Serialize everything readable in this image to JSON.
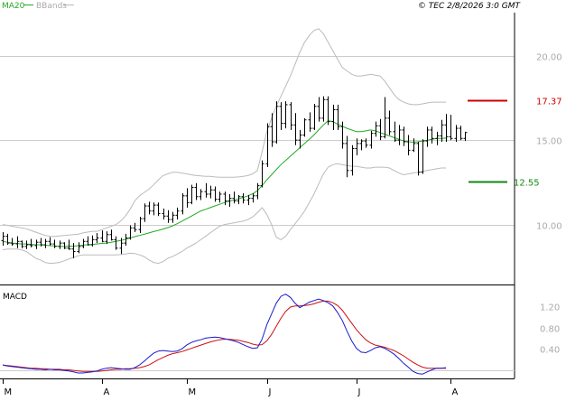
{
  "header": {
    "legend_ma": "MA20",
    "legend_bb": "BBands",
    "copyright": "© TEC 2/8/2026 3:0 GMT"
  },
  "colors": {
    "price": "#000000",
    "ma": "#22aa22",
    "bands": "#bbbbbb",
    "grid": "#cccccc",
    "resistance": "#cc0000",
    "support": "#118811",
    "macd": "#1a1acc",
    "signal": "#cc1111",
    "label": "#aaaaaa"
  },
  "chart_data": [
    {
      "type": "candlestick",
      "title": "",
      "ylim": [
        6.5,
        22.5
      ],
      "yticks": [
        {
          "value": 10,
          "label": "10.00"
        },
        {
          "value": 15,
          "label": "15.00"
        },
        {
          "value": 20,
          "label": "20.00"
        }
      ],
      "xticks": [
        {
          "i": 0,
          "label": "M"
        },
        {
          "i": 21,
          "label": "A"
        },
        {
          "i": 39,
          "label": "M"
        },
        {
          "i": 56,
          "label": "J"
        },
        {
          "i": 75,
          "label": "J"
        },
        {
          "i": 95,
          "label": "A"
        }
      ],
      "levels": [
        {
          "name": "resistance",
          "value": 17.37,
          "label": "17.37"
        },
        {
          "name": "support",
          "value": 12.55,
          "label": "12.55"
        }
      ],
      "series": [
        {
          "name": "MA20",
          "values": [
            9.0,
            8.95,
            8.9,
            8.88,
            8.85,
            8.85,
            8.82,
            8.8,
            8.8,
            8.78,
            8.75,
            8.73,
            8.7,
            8.7,
            8.72,
            8.72,
            8.75,
            8.78,
            8.8,
            8.82,
            8.85,
            8.88,
            8.9,
            8.95,
            9.0,
            9.05,
            9.12,
            9.2,
            9.28,
            9.35,
            9.42,
            9.5,
            9.58,
            9.65,
            9.73,
            9.82,
            9.92,
            10.05,
            10.2,
            10.35,
            10.5,
            10.65,
            10.8,
            10.9,
            11.0,
            11.1,
            11.2,
            11.3,
            11.38,
            11.45,
            11.52,
            11.6,
            11.7,
            11.82,
            12.0,
            12.3,
            12.65,
            12.95,
            13.25,
            13.55,
            13.8,
            14.05,
            14.3,
            14.55,
            14.8,
            15.05,
            15.3,
            15.6,
            15.9,
            16.15,
            16.1,
            15.95,
            15.82,
            15.7,
            15.6,
            15.5,
            15.5,
            15.55,
            15.6,
            15.55,
            15.45,
            15.35,
            15.25,
            15.15,
            15.05,
            14.95,
            14.9,
            14.88,
            14.9,
            14.95,
            15.0,
            15.05,
            15.1,
            15.1,
            15.12
          ]
        },
        {
          "name": "BBands upper",
          "values": [
            10.0,
            9.95,
            9.9,
            9.85,
            9.8,
            9.75,
            9.65,
            9.55,
            9.45,
            9.35,
            9.3,
            9.3,
            9.32,
            9.35,
            9.38,
            9.4,
            9.42,
            9.5,
            9.55,
            9.6,
            9.6,
            9.7,
            9.8,
            9.9,
            10.0,
            10.2,
            10.5,
            10.9,
            11.4,
            11.7,
            11.9,
            12.1,
            12.35,
            12.65,
            12.9,
            13.0,
            13.1,
            13.1,
            13.05,
            13.0,
            12.95,
            12.9,
            12.88,
            12.85,
            12.85,
            12.82,
            12.8,
            12.8,
            12.8,
            12.8,
            12.82,
            12.85,
            12.9,
            13.0,
            13.2,
            14.3,
            15.5,
            16.3,
            17.0,
            17.6,
            18.2,
            18.8,
            19.5,
            20.2,
            20.8,
            21.2,
            21.5,
            21.6,
            21.3,
            20.8,
            20.3,
            19.8,
            19.3,
            19.1,
            18.9,
            18.8,
            18.8,
            18.85,
            18.9,
            18.85,
            18.8,
            18.5,
            18.1,
            17.7,
            17.4,
            17.25,
            17.15,
            17.1,
            17.1,
            17.15,
            17.2,
            17.25,
            17.25,
            17.25,
            17.25
          ]
        },
        {
          "name": "BBands lower",
          "values": [
            8.5,
            8.55,
            8.55,
            8.55,
            8.5,
            8.4,
            8.2,
            8.0,
            7.9,
            7.75,
            7.7,
            7.72,
            7.75,
            7.85,
            7.95,
            8.05,
            8.15,
            8.2,
            8.2,
            8.2,
            8.2,
            8.2,
            8.2,
            8.2,
            8.2,
            8.22,
            8.25,
            8.3,
            8.28,
            8.2,
            8.1,
            7.9,
            7.75,
            7.7,
            7.8,
            8.0,
            8.1,
            8.25,
            8.4,
            8.6,
            8.75,
            8.9,
            9.1,
            9.3,
            9.5,
            9.7,
            9.9,
            10.0,
            10.05,
            10.1,
            10.15,
            10.2,
            10.3,
            10.45,
            10.7,
            11.0,
            10.6,
            10.0,
            9.25,
            9.1,
            9.3,
            9.7,
            10.05,
            10.4,
            10.8,
            11.3,
            11.8,
            12.4,
            13.0,
            13.4,
            13.55,
            13.6,
            13.55,
            13.5,
            13.45,
            13.45,
            13.4,
            13.35,
            13.35,
            13.4,
            13.4,
            13.4,
            13.35,
            13.2,
            13.05,
            12.95,
            13.0,
            13.05,
            13.1,
            13.15,
            13.2,
            13.25,
            13.3,
            13.35,
            13.35
          ]
        }
      ],
      "bars": [
        [
          9.05,
          9.55,
          8.75,
          9.3
        ],
        [
          9.3,
          9.45,
          8.8,
          8.9
        ],
        [
          8.9,
          9.2,
          8.75,
          8.85
        ],
        [
          8.85,
          9.3,
          8.6,
          9.0
        ],
        [
          9.0,
          9.05,
          8.6,
          8.7
        ],
        [
          8.7,
          9.05,
          8.55,
          8.8
        ],
        [
          8.8,
          9.15,
          8.65,
          8.75
        ],
        [
          8.75,
          9.1,
          8.55,
          8.95
        ],
        [
          8.95,
          9.2,
          8.7,
          8.8
        ],
        [
          8.8,
          9.15,
          8.6,
          9.0
        ],
        [
          9.0,
          9.25,
          8.75,
          8.85
        ],
        [
          8.85,
          9.1,
          8.6,
          8.7
        ],
        [
          8.7,
          9.05,
          8.55,
          8.9
        ],
        [
          8.9,
          8.95,
          8.55,
          8.6
        ],
        [
          8.6,
          9.1,
          8.5,
          8.55
        ],
        [
          8.55,
          8.9,
          8.0,
          8.4
        ],
        [
          8.4,
          8.95,
          8.3,
          8.7
        ],
        [
          8.7,
          9.15,
          8.6,
          9.0
        ],
        [
          9.0,
          9.3,
          8.75,
          8.8
        ],
        [
          8.8,
          9.35,
          8.7,
          9.1
        ],
        [
          9.1,
          9.5,
          8.9,
          9.2
        ],
        [
          9.2,
          9.65,
          8.95,
          9.0
        ],
        [
          9.0,
          9.6,
          8.85,
          9.4
        ],
        [
          9.4,
          9.7,
          9.05,
          9.1
        ],
        [
          9.1,
          9.3,
          8.5,
          8.6
        ],
        [
          8.6,
          9.2,
          8.25,
          8.9
        ],
        [
          8.9,
          9.45,
          8.75,
          9.2
        ],
        [
          9.2,
          9.95,
          9.1,
          9.8
        ],
        [
          9.8,
          10.1,
          9.55,
          9.7
        ],
        [
          9.7,
          10.45,
          9.5,
          10.35
        ],
        [
          10.35,
          11.25,
          10.15,
          11.1
        ],
        [
          11.1,
          11.35,
          10.6,
          10.8
        ],
        [
          10.8,
          11.3,
          10.55,
          11.15
        ],
        [
          11.15,
          11.3,
          10.5,
          10.65
        ],
        [
          10.65,
          10.95,
          10.3,
          10.5
        ],
        [
          10.5,
          10.85,
          10.1,
          10.3
        ],
        [
          10.3,
          10.75,
          10.1,
          10.55
        ],
        [
          10.55,
          11.0,
          10.3,
          10.8
        ],
        [
          10.8,
          11.85,
          10.6,
          11.7
        ],
        [
          11.7,
          12.15,
          11.0,
          11.3
        ],
        [
          11.3,
          12.35,
          11.2,
          12.2
        ],
        [
          12.2,
          12.45,
          11.45,
          11.65
        ],
        [
          11.65,
          12.1,
          11.45,
          11.95
        ],
        [
          11.95,
          12.45,
          11.6,
          11.8
        ],
        [
          11.8,
          12.3,
          11.55,
          12.05
        ],
        [
          12.05,
          12.25,
          11.35,
          11.5
        ],
        [
          11.5,
          11.95,
          11.3,
          11.8
        ],
        [
          11.8,
          11.95,
          11.15,
          11.4
        ],
        [
          11.4,
          11.8,
          11.05,
          11.55
        ],
        [
          11.55,
          11.95,
          11.25,
          11.4
        ],
        [
          11.4,
          11.75,
          11.2,
          11.65
        ],
        [
          11.65,
          11.85,
          11.25,
          11.45
        ],
        [
          11.45,
          11.75,
          11.15,
          11.55
        ],
        [
          11.55,
          11.85,
          11.3,
          11.7
        ],
        [
          11.7,
          12.45,
          11.5,
          12.3
        ],
        [
          12.3,
          13.8,
          12.2,
          13.6
        ],
        [
          13.6,
          16.0,
          13.4,
          15.8
        ],
        [
          15.8,
          16.6,
          14.6,
          14.9
        ],
        [
          14.9,
          17.3,
          14.8,
          17.0
        ],
        [
          17.0,
          17.25,
          15.6,
          16.0
        ],
        [
          16.0,
          17.3,
          15.7,
          17.1
        ],
        [
          17.1,
          17.25,
          15.6,
          15.9
        ],
        [
          15.9,
          16.6,
          14.7,
          15.0
        ],
        [
          15.0,
          15.6,
          14.5,
          15.3
        ],
        [
          15.3,
          16.3,
          15.2,
          16.2
        ],
        [
          16.2,
          16.65,
          15.5,
          15.7
        ],
        [
          15.7,
          17.15,
          15.6,
          17.0
        ],
        [
          17.0,
          17.55,
          16.1,
          16.3
        ],
        [
          16.3,
          17.6,
          16.1,
          17.4
        ],
        [
          17.4,
          17.6,
          15.9,
          16.1
        ],
        [
          16.1,
          17.1,
          15.6,
          16.8
        ],
        [
          16.8,
          17.1,
          15.6,
          15.8
        ],
        [
          15.8,
          16.1,
          14.5,
          14.8
        ],
        [
          14.8,
          15.25,
          12.8,
          13.2
        ],
        [
          13.2,
          14.7,
          12.9,
          14.5
        ],
        [
          14.5,
          15.1,
          14.1,
          14.8
        ],
        [
          14.8,
          15.05,
          14.4,
          14.95
        ],
        [
          14.95,
          15.1,
          14.55,
          14.7
        ],
        [
          14.7,
          15.55,
          14.5,
          15.4
        ],
        [
          15.4,
          16.1,
          15.2,
          15.85
        ],
        [
          15.85,
          16.25,
          15.0,
          15.2
        ],
        [
          15.2,
          17.55,
          15.1,
          16.3
        ],
        [
          16.3,
          16.75,
          15.3,
          15.5
        ],
        [
          15.5,
          16.1,
          14.9,
          15.0
        ],
        [
          15.0,
          15.9,
          14.7,
          15.6
        ],
        [
          15.6,
          15.8,
          14.65,
          14.9
        ],
        [
          14.9,
          15.3,
          14.1,
          14.4
        ],
        [
          14.4,
          15.1,
          14.3,
          14.8
        ],
        [
          14.8,
          14.9,
          12.9,
          13.1
        ],
        [
          13.1,
          15.05,
          13.0,
          14.95
        ],
        [
          14.95,
          15.8,
          14.6,
          15.6
        ],
        [
          15.6,
          15.8,
          14.8,
          15.1
        ],
        [
          15.1,
          15.5,
          14.7,
          15.25
        ],
        [
          15.25,
          16.2,
          14.9,
          15.9
        ],
        [
          15.9,
          16.55,
          14.9,
          15.2
        ],
        [
          15.2,
          16.5,
          15.0,
          15.1
        ],
        [
          15.1,
          15.9,
          14.9,
          15.7
        ],
        [
          15.7,
          15.85,
          15.0,
          15.1
        ],
        [
          15.1,
          15.5,
          14.95,
          15.45
        ]
      ]
    },
    {
      "type": "line",
      "title": "MACD",
      "ylim": [
        -0.1,
        1.55
      ],
      "yticks": [
        {
          "value": 0.4,
          "label": "0.40"
        },
        {
          "value": 0.8,
          "label": "0.80"
        },
        {
          "value": 1.2,
          "label": "1.20"
        }
      ],
      "series": [
        {
          "name": "MACD",
          "values": [
            0.1,
            0.08,
            0.07,
            0.06,
            0.05,
            0.04,
            0.03,
            0.02,
            0.02,
            0.01,
            0.02,
            0.01,
            0.01,
            0.0,
            -0.01,
            -0.03,
            -0.05,
            -0.05,
            -0.04,
            -0.03,
            -0.01,
            0.02,
            0.04,
            0.05,
            0.04,
            0.03,
            0.02,
            0.02,
            0.05,
            0.1,
            0.17,
            0.25,
            0.32,
            0.36,
            0.37,
            0.36,
            0.35,
            0.36,
            0.4,
            0.47,
            0.52,
            0.55,
            0.57,
            0.6,
            0.61,
            0.62,
            0.61,
            0.59,
            0.57,
            0.55,
            0.52,
            0.48,
            0.44,
            0.41,
            0.42,
            0.58,
            0.85,
            1.05,
            1.25,
            1.38,
            1.42,
            1.36,
            1.25,
            1.17,
            1.22,
            1.27,
            1.3,
            1.33,
            1.3,
            1.26,
            1.2,
            1.08,
            0.93,
            0.73,
            0.55,
            0.41,
            0.34,
            0.33,
            0.37,
            0.42,
            0.44,
            0.41,
            0.36,
            0.3,
            0.22,
            0.13,
            0.06,
            -0.02,
            -0.06,
            -0.07,
            -0.03,
            0.01,
            0.04,
            0.04,
            0.05
          ]
        },
        {
          "name": "Signal",
          "values": [
            0.1,
            0.09,
            0.08,
            0.07,
            0.06,
            0.05,
            0.04,
            0.04,
            0.03,
            0.03,
            0.02,
            0.02,
            0.02,
            0.01,
            0.01,
            0.0,
            -0.01,
            -0.02,
            -0.02,
            -0.02,
            -0.02,
            -0.01,
            0.0,
            0.01,
            0.02,
            0.02,
            0.03,
            0.03,
            0.04,
            0.05,
            0.07,
            0.1,
            0.15,
            0.2,
            0.24,
            0.28,
            0.31,
            0.33,
            0.35,
            0.38,
            0.41,
            0.44,
            0.47,
            0.5,
            0.53,
            0.55,
            0.57,
            0.58,
            0.58,
            0.57,
            0.56,
            0.54,
            0.52,
            0.49,
            0.47,
            0.48,
            0.55,
            0.67,
            0.82,
            0.97,
            1.1,
            1.18,
            1.2,
            1.2,
            1.21,
            1.22,
            1.24,
            1.27,
            1.29,
            1.29,
            1.26,
            1.21,
            1.12,
            1.0,
            0.88,
            0.76,
            0.66,
            0.57,
            0.51,
            0.47,
            0.45,
            0.43,
            0.4,
            0.37,
            0.32,
            0.27,
            0.21,
            0.15,
            0.1,
            0.06,
            0.04,
            0.04,
            0.04,
            0.04,
            0.04
          ]
        }
      ]
    }
  ]
}
